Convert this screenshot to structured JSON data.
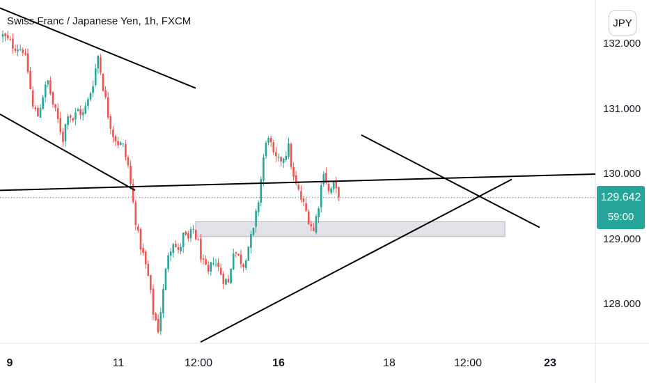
{
  "header": {
    "title": "Swiss Franc / Japanese Yen, 1h, FXCM",
    "currency": "JPY"
  },
  "last_price": {
    "price": "129.642",
    "countdown": "59:00"
  },
  "colors": {
    "up": "#26a69a",
    "down": "#ef5350",
    "line": "#000000",
    "zone_fill": "#e2e3e8",
    "zone_stroke": "#b2b5be",
    "axis": "#e0e3eb",
    "last": "#26a69a"
  },
  "chart_data": {
    "type": "candlestick",
    "title": "Swiss Franc / Japanese Yen, 1h, FXCM",
    "yticks": [
      "128.000",
      "129.000",
      "130.000",
      "131.000",
      "132.000"
    ],
    "ylim": [
      127.35,
      132.55
    ],
    "xticks": [
      "9",
      "11",
      "12:00",
      "16",
      "18",
      "12:00",
      "23"
    ],
    "bold_xticks": [
      "9",
      "16",
      "23"
    ],
    "last_price": 129.642,
    "close_path": [
      [
        0,
        132.12
      ],
      [
        4,
        131.98
      ],
      [
        8,
        131.92
      ],
      [
        10,
        131.58
      ],
      [
        12,
        131.02
      ],
      [
        14,
        130.9
      ],
      [
        16,
        131.22
      ],
      [
        18,
        131.42
      ],
      [
        20,
        131.07
      ],
      [
        22,
        130.82
      ],
      [
        24,
        130.55
      ],
      [
        26,
        130.96
      ],
      [
        28,
        130.84
      ],
      [
        30,
        130.98
      ],
      [
        32,
        130.92
      ],
      [
        34,
        131.12
      ],
      [
        36,
        131.42
      ],
      [
        38,
        131.82
      ],
      [
        40,
        131.35
      ],
      [
        42,
        130.92
      ],
      [
        44,
        130.62
      ],
      [
        46,
        130.48
      ],
      [
        48,
        130.42
      ],
      [
        50,
        130.12
      ],
      [
        52,
        129.55
      ],
      [
        54,
        129.05
      ],
      [
        56,
        128.75
      ],
      [
        58,
        128.42
      ],
      [
        60,
        127.88
      ],
      [
        62,
        127.62
      ],
      [
        64,
        128.2
      ],
      [
        66,
        128.8
      ],
      [
        68,
        128.98
      ],
      [
        70,
        128.78
      ],
      [
        72,
        129.05
      ],
      [
        74,
        128.98
      ],
      [
        76,
        129.15
      ],
      [
        78,
        128.92
      ],
      [
        80,
        128.6
      ],
      [
        82,
        128.45
      ],
      [
        84,
        128.7
      ],
      [
        86,
        128.55
      ],
      [
        88,
        128.4
      ],
      [
        90,
        128.32
      ],
      [
        92,
        128.85
      ],
      [
        94,
        128.72
      ],
      [
        96,
        128.62
      ],
      [
        98,
        128.9
      ],
      [
        100,
        129.12
      ],
      [
        102,
        129.6
      ],
      [
        104,
        130.25
      ],
      [
        106,
        130.62
      ],
      [
        108,
        130.25
      ],
      [
        110,
        130.18
      ],
      [
        112,
        130.28
      ],
      [
        114,
        130.4
      ],
      [
        116,
        129.92
      ],
      [
        118,
        129.72
      ],
      [
        120,
        129.52
      ],
      [
        122,
        129.32
      ],
      [
        124,
        129.12
      ],
      [
        126,
        129.55
      ],
      [
        128,
        130.08
      ],
      [
        130,
        129.72
      ],
      [
        132,
        129.82
      ],
      [
        134,
        129.64
      ]
    ],
    "drawings": [
      {
        "type": "trendline",
        "points": [
          [
            0,
            132.55
          ],
          [
            281,
            131.32
          ]
        ]
      },
      {
        "type": "trendline",
        "points": [
          [
            0,
            130.92
          ],
          [
            194,
            129.75
          ]
        ]
      },
      {
        "type": "trendline",
        "points": [
          [
            0,
            129.75
          ],
          [
            855,
            130.0
          ]
        ]
      },
      {
        "type": "trendline",
        "points": [
          [
            519,
            130.6
          ],
          [
            775,
            129.18
          ]
        ]
      },
      {
        "type": "trendline",
        "points": [
          [
            288,
            127.42
          ],
          [
            735,
            129.92
          ]
        ]
      },
      {
        "type": "rectangle",
        "points": [
          [
            281,
            129.27
          ],
          [
            725,
            129.04
          ]
        ]
      }
    ]
  }
}
